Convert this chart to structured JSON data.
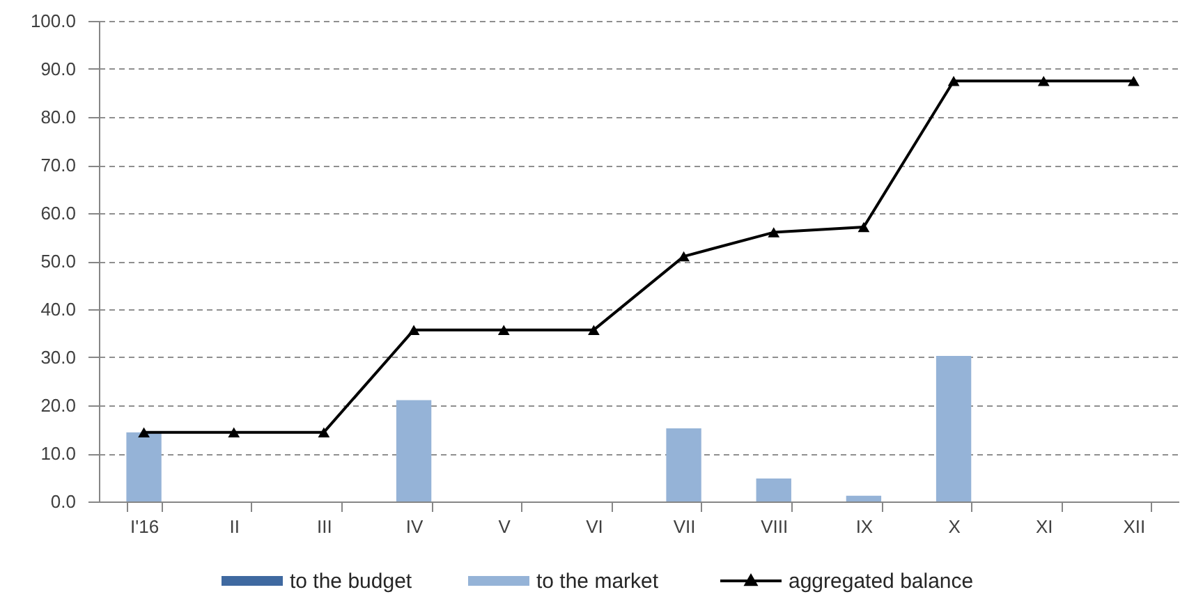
{
  "chart_data": {
    "type": "bar",
    "categories": [
      "I'16",
      "II",
      "III",
      "IV",
      "V",
      "VI",
      "VII",
      "VIII",
      "IX",
      "X",
      "XI",
      "XII"
    ],
    "series": [
      {
        "name": "to the budget",
        "type": "bar",
        "color": "#3f69a0",
        "values": [
          null,
          null,
          null,
          null,
          null,
          null,
          null,
          null,
          null,
          null,
          null,
          null
        ]
      },
      {
        "name": "to the market",
        "type": "bar",
        "color": "#95b3d7",
        "values": [
          14.4,
          null,
          null,
          21.1,
          null,
          null,
          15.2,
          4.8,
          1.2,
          30.3,
          null,
          null
        ]
      },
      {
        "name": "aggregated balance",
        "type": "line",
        "color": "#000000",
        "values": [
          14.4,
          14.4,
          14.4,
          35.7,
          35.7,
          35.7,
          51.0,
          56.0,
          57.1,
          87.5,
          87.5,
          87.5
        ]
      }
    ],
    "stacked": true,
    "ylim": [
      0,
      100
    ],
    "yticks": [
      {
        "value": 0,
        "label": "0.0"
      },
      {
        "value": 10,
        "label": "10.0"
      },
      {
        "value": 20,
        "label": "20.0"
      },
      {
        "value": 30,
        "label": "30.0"
      },
      {
        "value": 40,
        "label": "40.0"
      },
      {
        "value": 50,
        "label": "50.0"
      },
      {
        "value": 60,
        "label": "60.0"
      },
      {
        "value": 70,
        "label": "70.0"
      },
      {
        "value": 80,
        "label": "80.0"
      },
      {
        "value": 90,
        "label": "90.0"
      },
      {
        "value": 100,
        "label": "100.0"
      }
    ],
    "grid": "y",
    "legend": "bottom",
    "marker": "triangle",
    "line_style": "solid"
  }
}
